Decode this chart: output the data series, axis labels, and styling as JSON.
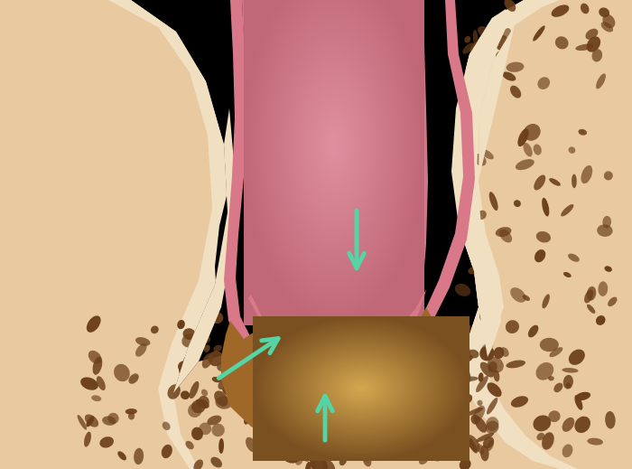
{
  "bg": "#000000",
  "bone_peach": "#e8c9a0",
  "bone_peach_dark": "#c9a878",
  "bone_peach_light": "#f0dfc0",
  "bone_pore_dark": "#6b3f1a",
  "bone_pore_mid": "#8b5a2b",
  "sinus_pink_dark": "#c06878",
  "sinus_pink_mid": "#d07888",
  "sinus_pink_light": "#e090a0",
  "membrane_pink": "#d87888",
  "tissue_dark": "#b05868",
  "tissue_light": "#e09090",
  "graft_dark": "#7a5020",
  "graft_mid": "#a06828",
  "graft_light": "#c8943a",
  "graft_highlight": "#d4a850",
  "arrow_color": "#55d4a5",
  "figsize": [
    7.0,
    5.19
  ],
  "dpi": 100
}
